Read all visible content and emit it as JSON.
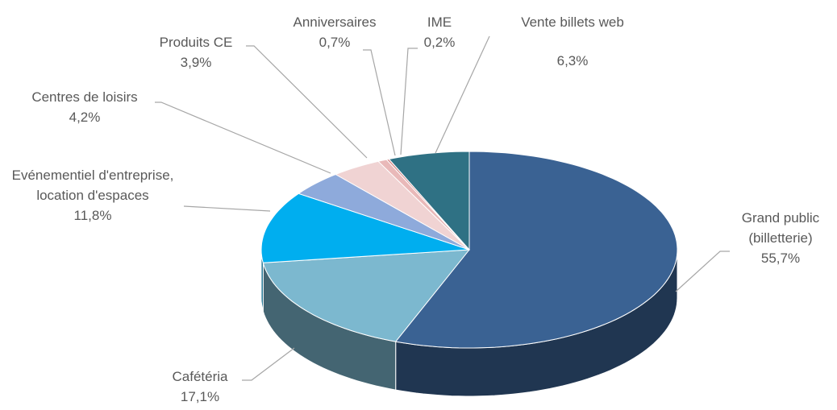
{
  "chart_data": {
    "type": "pie",
    "categories": [
      "Grand public (billetterie)",
      "Cafétéria",
      "Evénementiel d'entreprise, location d'espaces",
      "Centres de loisirs",
      "Produits CE",
      "Anniversaires",
      "IME",
      "Vente billets web"
    ],
    "values": [
      55.7,
      17.1,
      11.8,
      4.2,
      3.9,
      0.7,
      0.2,
      6.3
    ],
    "value_labels": [
      "55,7%",
      "17,1%",
      "11,8%",
      "4,2%",
      "3,9%",
      "0,7%",
      "0,2%",
      "6,3%"
    ],
    "colors": [
      "#3a6293",
      "#7cb8cf",
      "#00aeef",
      "#8eaadb",
      "#f0d3d3",
      "#e9b9b9",
      "#d98f8f",
      "#2f7184"
    ]
  }
}
